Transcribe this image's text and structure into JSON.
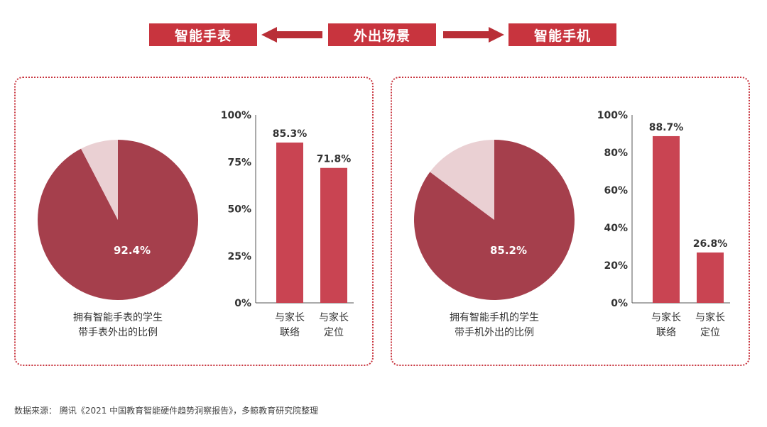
{
  "header": {
    "left_label": "智能手表",
    "center_label": "外出场景",
    "right_label": "智能手机"
  },
  "colors": {
    "header_box": "#c8343e",
    "arrow": "#b92f37",
    "pie_main": "#a53f4c",
    "pie_rest": "#ead0d3",
    "bar": "#c94452",
    "border": "#c8343e",
    "text": "#333333"
  },
  "chart_data": [
    {
      "type": "pie",
      "slices": [
        {
          "label": "92.4%",
          "value": 92.4
        },
        {
          "value": 7.6
        }
      ],
      "caption": [
        "拥有智能手表的学生",
        "带手表外出的比例"
      ]
    },
    {
      "type": "bar",
      "categories": [
        [
          "与家长",
          "联络"
        ],
        [
          "与家长",
          "定位"
        ]
      ],
      "values": [
        85.3,
        71.8
      ],
      "value_labels": [
        "85.3%",
        "71.8%"
      ],
      "ylim": [
        0,
        100
      ],
      "yticks": [
        0,
        25,
        50,
        75,
        100
      ],
      "ytick_labels": [
        "0%",
        "25%",
        "50%",
        "75%",
        "100%"
      ]
    },
    {
      "type": "pie",
      "slices": [
        {
          "label": "85.2%",
          "value": 85.2
        },
        {
          "value": 14.8
        }
      ],
      "caption": [
        "拥有智能手机的学生",
        "带手机外出的比例"
      ]
    },
    {
      "type": "bar",
      "categories": [
        [
          "与家长",
          "联络"
        ],
        [
          "与家长",
          "定位"
        ]
      ],
      "values": [
        88.7,
        26.8
      ],
      "value_labels": [
        "88.7%",
        "26.8%"
      ],
      "ylim": [
        0,
        100
      ],
      "yticks": [
        0,
        20,
        40,
        60,
        80,
        100
      ],
      "ytick_labels": [
        "0%",
        "20%",
        "40%",
        "60%",
        "80%",
        "100%"
      ]
    }
  ],
  "source": "数据来源： 腾讯《2021 中国教育智能硬件趋势洞察报告》，多鲸教育研究院整理"
}
